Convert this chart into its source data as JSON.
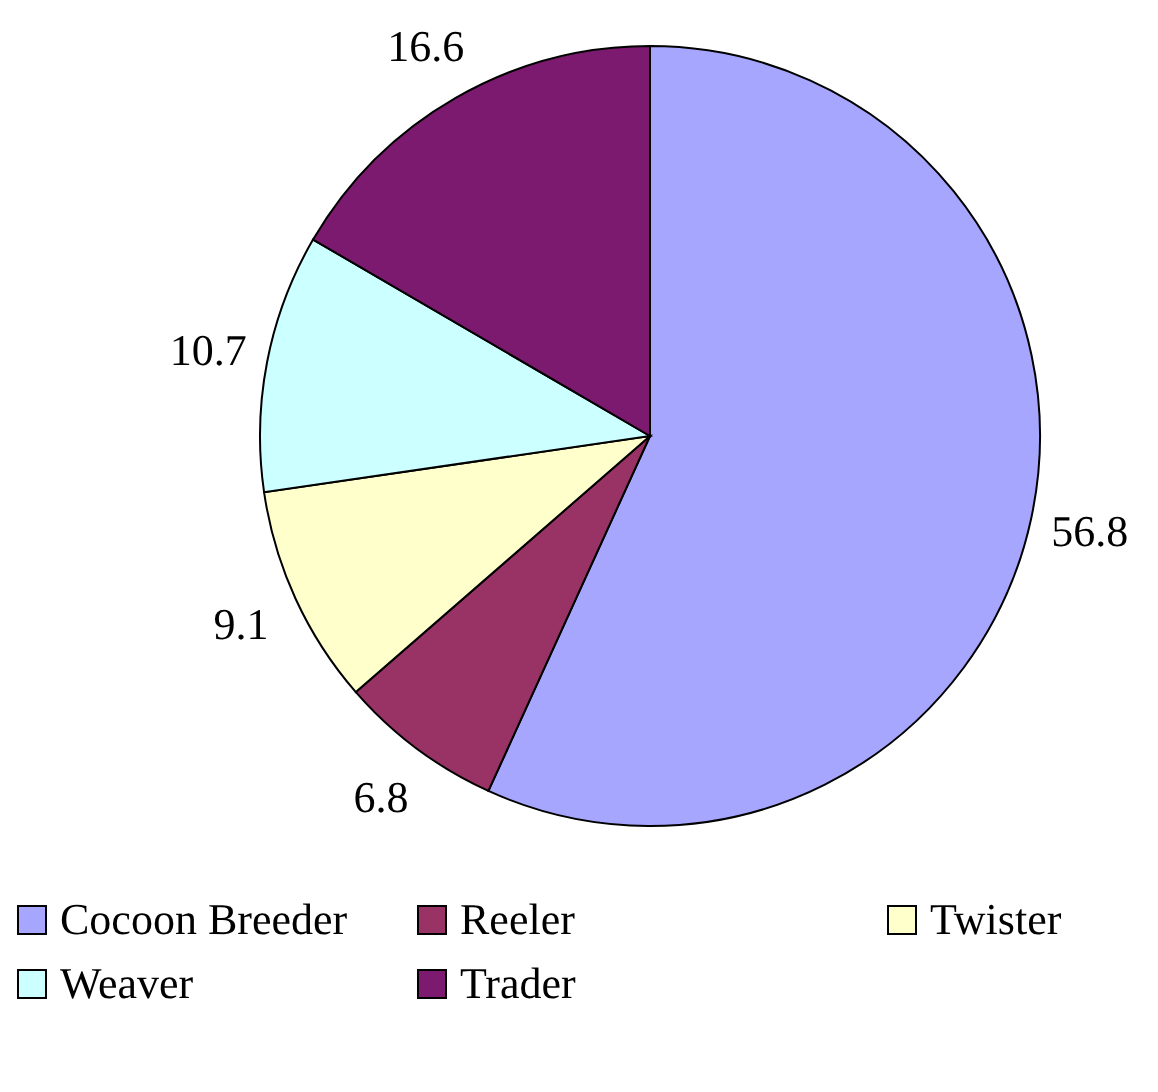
{
  "chart_data": {
    "type": "pie",
    "categories": [
      "Cocoon Breeder",
      "Reeler",
      "Twister",
      "Weaver",
      "Trader"
    ],
    "values": [
      56.8,
      6.8,
      9.1,
      10.7,
      16.6
    ],
    "colors": [
      "#a6a6ff",
      "#993366",
      "#ffffcc",
      "#ccffff",
      "#7b1a6e"
    ],
    "data_labels": true,
    "legend": "bottom"
  }
}
